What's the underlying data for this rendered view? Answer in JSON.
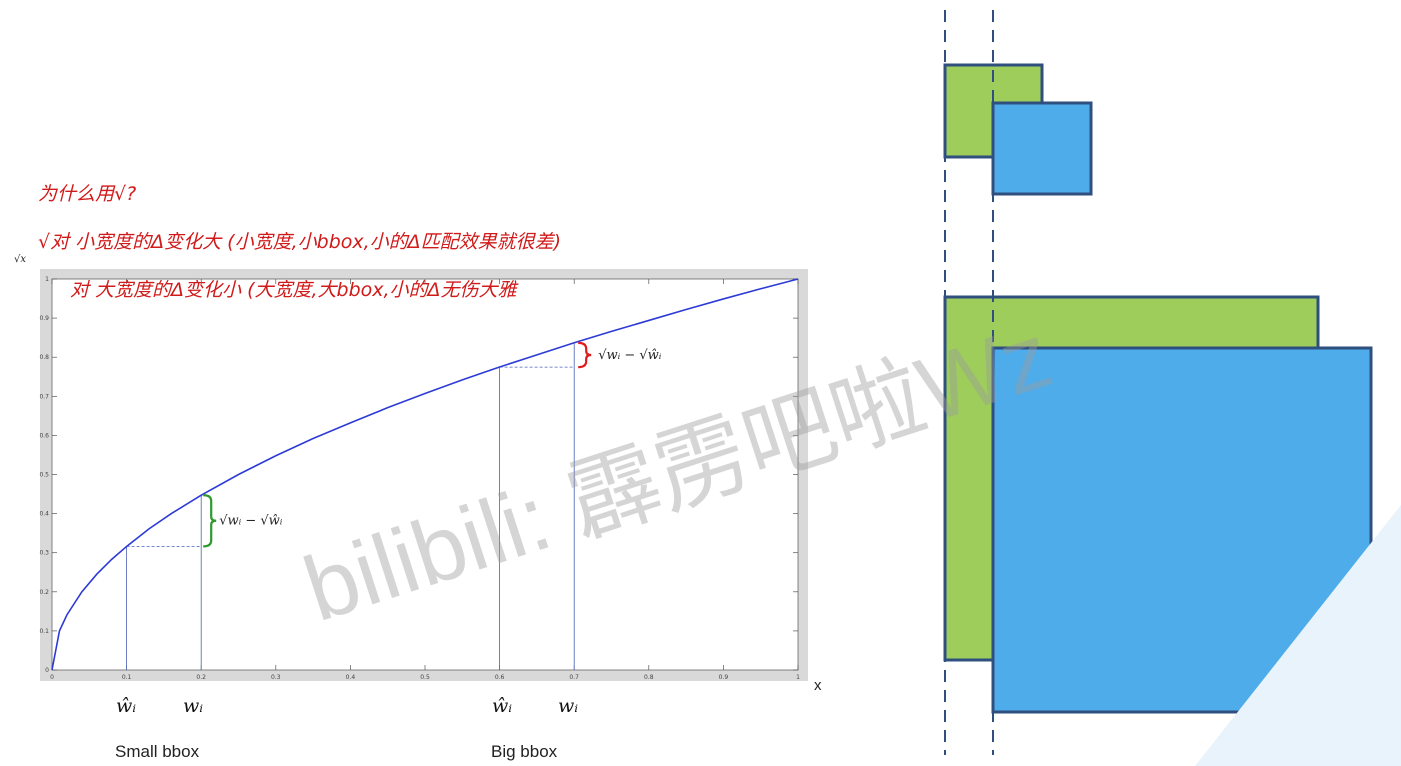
{
  "chart_data": {
    "type": "line",
    "function": "sqrt(x)",
    "xlabel": "x",
    "ylabel": "√x",
    "xlim": [
      0,
      1
    ],
    "ylim": [
      0,
      1
    ],
    "x_ticks": [
      "0",
      "0.1",
      "0.2",
      "0.3",
      "0.4",
      "0.5",
      "0.6",
      "0.7",
      "0.8",
      "0.9",
      "1"
    ],
    "y_ticks": [
      "0",
      "0.1",
      "0.2",
      "0.3",
      "0.4",
      "0.5",
      "0.6",
      "0.7",
      "0.8",
      "0.9",
      "1"
    ],
    "grid": false,
    "series": [
      {
        "color": "#2d3bd6",
        "x": [
          0,
          0.01,
          0.02,
          0.04,
          0.06,
          0.08,
          0.1,
          0.13,
          0.16,
          0.2,
          0.25,
          0.3,
          0.35,
          0.4,
          0.45,
          0.5,
          0.55,
          0.6,
          0.65,
          0.7,
          0.75,
          0.8,
          0.85,
          0.9,
          0.95,
          1.0
        ],
        "y": [
          0,
          0.1,
          0.141,
          0.2,
          0.245,
          0.283,
          0.316,
          0.361,
          0.4,
          0.447,
          0.5,
          0.548,
          0.592,
          0.632,
          0.671,
          0.707,
          0.742,
          0.775,
          0.806,
          0.837,
          0.866,
          0.894,
          0.922,
          0.949,
          0.975,
          1.0
        ]
      }
    ],
    "markers": {
      "small": {
        "w_hat": 0.1,
        "w": 0.2,
        "color": "#2e9a2e"
      },
      "big": {
        "w_hat": 0.6,
        "w": 0.7,
        "color": "#e01b1b"
      }
    },
    "annotations": [
      "√wᵢ − √ŵᵢ",
      "√wᵢ − √ŵᵢ"
    ],
    "x_labels": {
      "small": {
        "hat": "ŵᵢ",
        "plain": "wᵢ",
        "caption": "Small bbox"
      },
      "big": {
        "hat": "ŵᵢ",
        "plain": "wᵢ",
        "caption": "Big bbox"
      }
    }
  },
  "handwritten_notes": [
    "为什么用√?",
    "√对 小宽度的Δ变化大 (小宽度,小bbox,小的Δ匹配效果就很差)",
    "对 大宽度的Δ变化小 (大宽度,大bbox,小的Δ无伤大雅"
  ],
  "watermark": "bilibili: 霹雳吧啦Wz",
  "boxes_diagram": {
    "colors": {
      "green": "#9ecd5c",
      "blue": "#4facea",
      "stroke": "#2f4f7f"
    }
  }
}
